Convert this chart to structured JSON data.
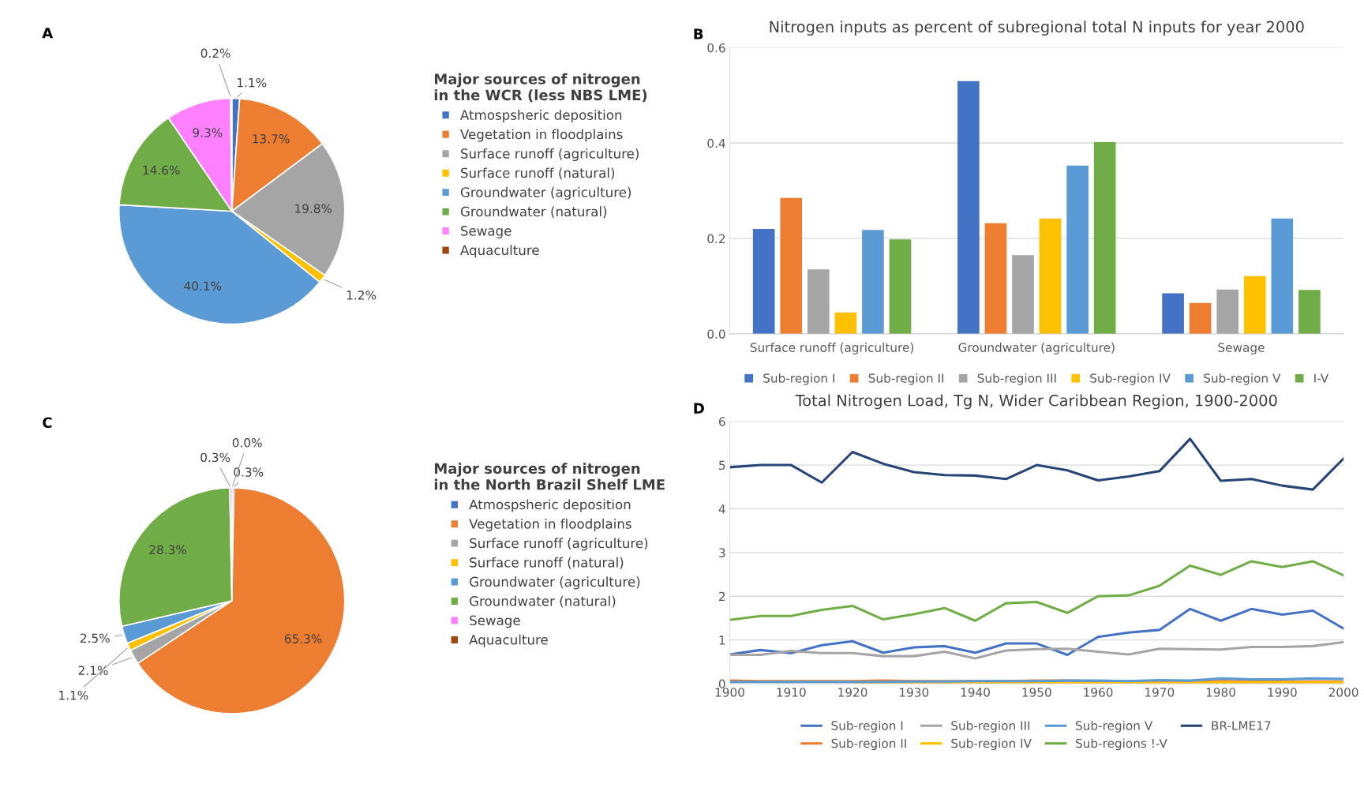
{
  "chart_data": [
    {
      "type": "pie",
      "annotations": [
        "A"
      ],
      "legend_title": "Major sources of nitrogen\nin the WCR (less NBS LME)",
      "legend": "right",
      "categories": [
        "Atmospsheric deposition",
        "Vegetation in floodplains",
        "Surface runoff (agriculture)",
        "Surface runoff (natural)",
        "Groundwater (agriculture)",
        "Groundwater (natural)",
        "Sewage",
        "Aquaculture"
      ],
      "values": [
        1.1,
        13.7,
        19.8,
        1.2,
        40.1,
        14.6,
        9.3,
        0.2
      ],
      "value_labels": [
        "1.1%",
        "13.7%",
        "19.8%",
        "1.2%",
        "40.1%",
        "14.6%",
        "9.3%",
        "0.2%"
      ],
      "colors": [
        "#4472c4",
        "#ed7d31",
        "#a5a5a5",
        "#ffc000",
        "#5b9bd5",
        "#70ad47",
        "#ff80ff",
        "#9e480e"
      ]
    },
    {
      "type": "bar",
      "annotations": [
        "B"
      ],
      "title": "Nitrogen inputs as percent of subregional total N inputs for year 2000",
      "categories": [
        "Surface runoff (agriculture)",
        "Groundwater (agriculture)",
        "Sewage"
      ],
      "series": [
        {
          "name": "Sub-region I",
          "color": "#4472c4",
          "values": [
            0.22,
            0.53,
            0.085
          ]
        },
        {
          "name": "Sub-region II",
          "color": "#ed7d31",
          "values": [
            0.285,
            0.232,
            0.065
          ]
        },
        {
          "name": "Sub-region III",
          "color": "#a5a5a5",
          "values": [
            0.135,
            0.165,
            0.093
          ]
        },
        {
          "name": "Sub-region IV",
          "color": "#ffc000",
          "values": [
            0.045,
            0.242,
            0.121
          ]
        },
        {
          "name": "Sub-region V",
          "color": "#5b9bd5",
          "values": [
            0.218,
            0.353,
            0.242
          ]
        },
        {
          "name": "I-V",
          "color": "#70ad47",
          "values": [
            0.198,
            0.402,
            0.092
          ]
        }
      ],
      "ylim": [
        0,
        0.6
      ],
      "yticks": [
        {
          "value": 0,
          "label": "0.0"
        },
        {
          "value": 0.2,
          "label": "0.2"
        },
        {
          "value": 0.4,
          "label": "0.4"
        },
        {
          "value": 0.6,
          "label": "0.6"
        }
      ],
      "grid": "y",
      "legend": "bottom"
    },
    {
      "type": "pie",
      "annotations": [
        "C"
      ],
      "legend_title": "Major sources of nitrogen\nin the North Brazil Shelf LME",
      "legend": "right",
      "categories": [
        "Atmospsheric deposition",
        "Vegetation in floodplains",
        "Surface runoff (agriculture)",
        "Surface runoff (natural)",
        "Groundwater (agriculture)",
        "Groundwater (natural)",
        "Sewage",
        "Aquaculture"
      ],
      "values": [
        0.3,
        65.3,
        2.1,
        1.1,
        2.5,
        28.3,
        0.3,
        0.0
      ],
      "value_labels": [
        "0.3%",
        "65.3%",
        "2.1%",
        "1.1%",
        "2.5%",
        "28.3%",
        "0.3%",
        "0.0%"
      ],
      "colors": [
        "#4472c4",
        "#ed7d31",
        "#a5a5a5",
        "#ffc000",
        "#5b9bd5",
        "#70ad47",
        "#ff80ff",
        "#9e480e"
      ]
    },
    {
      "type": "line",
      "annotations": [
        "D"
      ],
      "title": "Total Nitrogen Load, Tg N, Wider Caribbean Region, 1900-2000",
      "x": [
        1900,
        1905,
        1910,
        1915,
        1920,
        1925,
        1930,
        1935,
        1940,
        1945,
        1950,
        1955,
        1960,
        1965,
        1970,
        1975,
        1980,
        1985,
        1990,
        1995,
        2000
      ],
      "series": [
        {
          "name": "Sub-region I",
          "color": "#4472c4",
          "values": [
            0.67,
            0.77,
            0.7,
            0.88,
            0.97,
            0.71,
            0.83,
            0.86,
            0.71,
            0.92,
            0.92,
            0.66,
            1.07,
            1.17,
            1.23,
            1.71,
            1.44,
            1.71,
            1.58,
            1.67,
            1.26
          ]
        },
        {
          "name": "Sub-region II",
          "color": "#ed7d31",
          "values": [
            0.07,
            0.06,
            0.06,
            0.06,
            0.06,
            0.07,
            0.06,
            0.06,
            0.06,
            0.06,
            0.07,
            0.07,
            0.06,
            0.06,
            0.06,
            0.06,
            0.06,
            0.06,
            0.05,
            0.05,
            0.05
          ]
        },
        {
          "name": "Sub-region III",
          "color": "#a5a5a5",
          "values": [
            0.66,
            0.66,
            0.75,
            0.7,
            0.7,
            0.63,
            0.63,
            0.73,
            0.58,
            0.76,
            0.79,
            0.8,
            0.73,
            0.67,
            0.8,
            0.79,
            0.78,
            0.84,
            0.84,
            0.86,
            0.95
          ]
        },
        {
          "name": "Sub-region IV",
          "color": "#ffc000",
          "values": [
            null,
            null,
            null,
            null,
            0.01,
            0.01,
            0.01,
            0.01,
            0.01,
            0.01,
            0.01,
            0.01,
            0.02,
            0.02,
            0.02,
            0.02,
            0.03,
            0.03,
            0.03,
            0.03,
            0.03
          ]
        },
        {
          "name": "Sub-region V",
          "color": "#5b9bd5",
          "values": [
            0.04,
            0.04,
            0.04,
            0.04,
            0.04,
            0.04,
            0.05,
            0.05,
            0.06,
            0.06,
            0.06,
            0.07,
            0.07,
            0.06,
            0.08,
            0.07,
            0.12,
            0.1,
            0.1,
            0.12,
            0.11
          ]
        },
        {
          "name": "Sub-regions !-V",
          "color": "#70ad47",
          "values": [
            1.46,
            1.55,
            1.55,
            1.69,
            1.78,
            1.47,
            1.59,
            1.73,
            1.44,
            1.84,
            1.87,
            1.62,
            2.0,
            2.02,
            2.24,
            2.7,
            2.49,
            2.8,
            2.67,
            2.8,
            2.48
          ]
        },
        {
          "name": "BR-LME17",
          "color": "#264478",
          "values": [
            4.95,
            5.0,
            5.0,
            4.6,
            5.3,
            5.03,
            4.84,
            4.77,
            4.76,
            4.68,
            5.0,
            4.88,
            4.65,
            4.74,
            4.86,
            5.6,
            4.64,
            4.68,
            4.53,
            4.44,
            5.15
          ]
        }
      ],
      "xlim": [
        1900,
        2000
      ],
      "xticks": [
        1900,
        1910,
        1920,
        1930,
        1940,
        1950,
        1960,
        1970,
        1980,
        1990,
        2000
      ],
      "ylim": [
        0,
        6
      ],
      "yticks": [
        0,
        1,
        2,
        3,
        4,
        5,
        6
      ],
      "grid": "y",
      "legend": "bottom"
    }
  ]
}
